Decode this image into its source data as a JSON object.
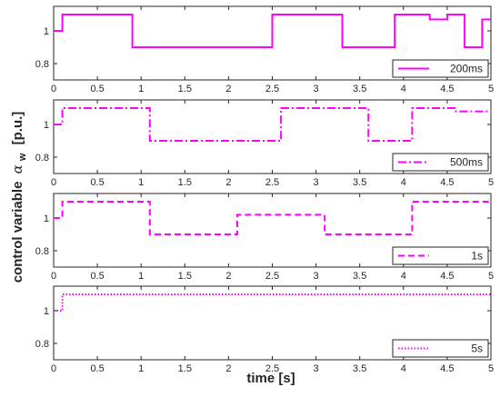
{
  "chart_data": [
    {
      "type": "line",
      "xlim": [
        0,
        5
      ],
      "ylim": [
        0.7,
        1.15
      ],
      "xticks": [
        "0",
        "0.5",
        "1",
        "1.5",
        "2",
        "2.5",
        "3",
        "3.5",
        "4",
        "4.5",
        "5"
      ],
      "yticks": [
        "0.8",
        "1"
      ],
      "legend_position": "bottom-right",
      "series": [
        {
          "name": "200ms",
          "color": "#ff00ff",
          "dash": "solid",
          "x": [
            0,
            0.1,
            0.1,
            0.9,
            0.9,
            2.5,
            2.5,
            3.3,
            3.3,
            3.9,
            3.9,
            4.3,
            4.3,
            4.5,
            4.5,
            4.7,
            4.7,
            4.9,
            4.9,
            5.0
          ],
          "y": [
            1.0,
            1.0,
            1.1,
            1.1,
            0.9,
            0.9,
            1.1,
            1.1,
            0.9,
            0.9,
            1.1,
            1.1,
            1.07,
            1.07,
            1.1,
            1.1,
            0.9,
            0.9,
            1.07,
            1.07
          ]
        }
      ]
    },
    {
      "type": "line",
      "xlim": [
        0,
        5
      ],
      "ylim": [
        0.7,
        1.15
      ],
      "xticks": [
        "0",
        "0.5",
        "1",
        "1.5",
        "2",
        "2.5",
        "3",
        "3.5",
        "4",
        "4.5",
        "5"
      ],
      "yticks": [
        "0.8",
        "1"
      ],
      "legend_position": "bottom-right",
      "series": [
        {
          "name": "500ms",
          "color": "#ff00ff",
          "dash": "dashdot",
          "x": [
            0,
            0.1,
            0.1,
            1.1,
            1.1,
            2.6,
            2.6,
            3.6,
            3.6,
            4.1,
            4.1,
            4.6,
            4.6,
            5.0
          ],
          "y": [
            1.0,
            1.0,
            1.1,
            1.1,
            0.9,
            0.9,
            1.1,
            1.1,
            0.9,
            0.9,
            1.1,
            1.1,
            1.08,
            1.08
          ]
        }
      ]
    },
    {
      "type": "line",
      "xlim": [
        0,
        5
      ],
      "ylim": [
        0.7,
        1.15
      ],
      "xticks": [
        "0",
        "0.5",
        "1",
        "1.5",
        "2",
        "2.5",
        "3",
        "3.5",
        "4",
        "4.5",
        "5"
      ],
      "yticks": [
        "0.8",
        "1"
      ],
      "legend_position": "bottom-right",
      "series": [
        {
          "name": "1s",
          "color": "#ff00ff",
          "dash": "dashed",
          "x": [
            0,
            0.1,
            0.1,
            1.1,
            1.1,
            2.1,
            2.1,
            3.1,
            3.1,
            4.1,
            4.1,
            5.0
          ],
          "y": [
            1.0,
            1.0,
            1.1,
            1.1,
            0.9,
            0.9,
            1.02,
            1.02,
            0.9,
            0.9,
            1.1,
            1.1
          ]
        }
      ]
    },
    {
      "type": "line",
      "xlim": [
        0,
        5
      ],
      "ylim": [
        0.7,
        1.15
      ],
      "xticks": [
        "0",
        "0.5",
        "1",
        "1.5",
        "2",
        "2.5",
        "3",
        "3.5",
        "4",
        "4.5",
        "5"
      ],
      "yticks": [
        "0.8",
        "1"
      ],
      "legend_position": "bottom-right",
      "series": [
        {
          "name": "5s",
          "color": "#ff00ff",
          "dash": "dotted",
          "x": [
            0,
            0.1,
            0.1,
            5.0
          ],
          "y": [
            1.0,
            1.0,
            1.1,
            1.1
          ]
        }
      ]
    }
  ],
  "labels": {
    "xlabel": "time [s]",
    "ylabel": "control variable",
    "ylabel_symbol": "α",
    "ylabel_subscript": "w",
    "ylabel_unit": "[p.u.]"
  }
}
